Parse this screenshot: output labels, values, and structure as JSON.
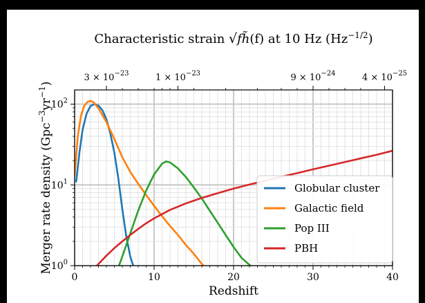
{
  "chart_data": {
    "type": "line",
    "title": "Characteristic strain √f h̃(f) at 10 Hz (Hz⁻¹ᐟ²)",
    "title_parts": {
      "lead": "Characteristic strain ",
      "sqrt_sym": "√",
      "f_sym": "f",
      "h_sym": "h̃",
      "arg": "(f)",
      "mid": " at 10 Hz (Hz",
      "exp": "−1/2",
      "tail": ")"
    },
    "xlabel": "Redshift",
    "ylabel": "Merger rate density (Gpc⁻³yr⁻¹)",
    "ylabel_parts": {
      "lead": "Merger rate density (Gpc",
      "exp1": "−3",
      "mid": "yr",
      "exp2": "−1",
      "tail": ")"
    },
    "xlim": [
      0,
      40
    ],
    "ylim": [
      1,
      150
    ],
    "yscale": "log",
    "grid": true,
    "legend_position": "lower-right",
    "x_ticks": [
      {
        "value": 0,
        "label": "0"
      },
      {
        "value": 10,
        "label": "10"
      },
      {
        "value": 20,
        "label": "20"
      },
      {
        "value": 30,
        "label": "30"
      },
      {
        "value": 40,
        "label": "40"
      }
    ],
    "y_ticks": [
      {
        "value": 1,
        "base": "10",
        "exp": "0"
      },
      {
        "value": 10,
        "base": "10",
        "exp": "1"
      },
      {
        "value": 100,
        "base": "10",
        "exp": "2"
      }
    ],
    "top_ticks": [
      {
        "x": 4,
        "mant": "3 × 10",
        "exp": "−23"
      },
      {
        "x": 13,
        "mant": "1 × 10",
        "exp": "−23"
      },
      {
        "x": 30,
        "mant": "9 × 10",
        "exp": "−24"
      },
      {
        "x": 39,
        "mant": "4 × 10",
        "exp": "−25"
      }
    ],
    "series": [
      {
        "name": "Globular cluster",
        "color": "#1f77b4",
        "x": [
          0.2,
          0.6,
          1.0,
          1.5,
          2.0,
          2.5,
          3.0,
          3.5,
          4.0,
          4.5,
          5.0,
          5.5,
          6.0,
          6.5,
          7.0,
          7.3,
          7.5
        ],
        "y": [
          11,
          25,
          48,
          76,
          95,
          100,
          96,
          84,
          65,
          43,
          25,
          12,
          5,
          2.3,
          1.3,
          1.05,
          0.9
        ]
      },
      {
        "name": "Galactic field",
        "color": "#ff7f0e",
        "x": [
          0.0,
          0.4,
          0.8,
          1.2,
          1.6,
          2.0,
          2.4,
          3.0,
          4.0,
          5.0,
          6.0,
          7.0,
          8.0,
          9.0,
          10.0,
          11.0,
          12.0,
          13.0,
          14.0,
          15.0,
          16.0,
          16.5
        ],
        "y": [
          13,
          40,
          72,
          95,
          106,
          110,
          105,
          89,
          60,
          37,
          22,
          14.5,
          10.3,
          7.5,
          5.5,
          4.1,
          3.1,
          2.4,
          1.8,
          1.4,
          1.05,
          0.95
        ]
      },
      {
        "name": "Pop III",
        "color": "#2ca02c",
        "x": [
          5.5,
          6.0,
          7.0,
          8.0,
          9.0,
          10.0,
          11.0,
          11.5,
          12.0,
          13.0,
          14.0,
          15.0,
          16.0,
          17.0,
          18.0,
          19.0,
          20.0,
          21.0,
          22.0,
          22.6
        ],
        "y": [
          0.95,
          1.3,
          2.5,
          4.8,
          8.5,
          13.5,
          18.3,
          19.5,
          19,
          16,
          12.5,
          9.3,
          6.8,
          4.8,
          3.4,
          2.4,
          1.7,
          1.25,
          1.02,
          0.95
        ]
      },
      {
        "name": "PBH",
        "color": "#d62728",
        "x": [
          2.8,
          4.0,
          5.0,
          6.0,
          7.0,
          8.0,
          9.0,
          10.0,
          12.0,
          14.0,
          16.0,
          18.0,
          20.0,
          22.0,
          24.0,
          26.0,
          28.0,
          30.0,
          32.0,
          34.0,
          36.0,
          38.0,
          40.0
        ],
        "y": [
          1.0,
          1.33,
          1.65,
          2.0,
          2.4,
          2.85,
          3.35,
          3.85,
          4.9,
          5.9,
          6.9,
          7.9,
          9.0,
          10.1,
          11.3,
          12.6,
          14.0,
          15.6,
          17.3,
          19.2,
          21.3,
          23.6,
          26.5
        ]
      }
    ]
  }
}
